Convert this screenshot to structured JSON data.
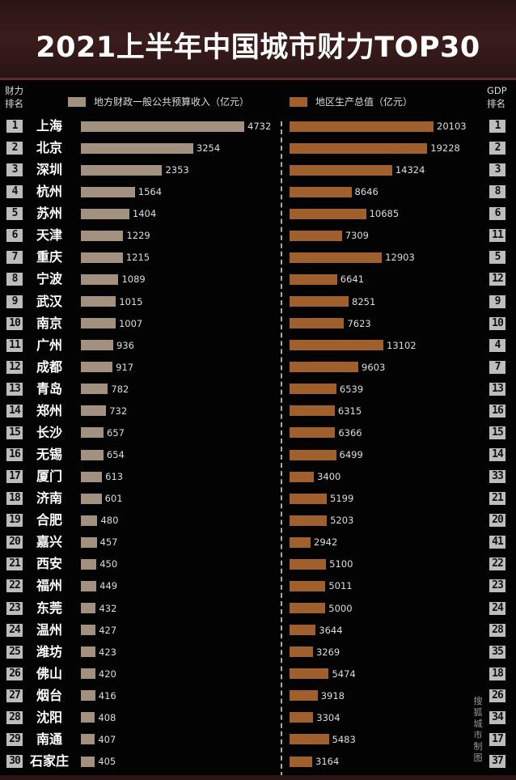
{
  "title": "2021上半年中国城市财力TOP30",
  "left_header": "财力排名",
  "right_header": "GDP排名",
  "credit": "搜狐城市制图",
  "chart_data": {
    "type": "bar",
    "orientation": "horizontal",
    "title": "2021上半年中国城市财力TOP30",
    "colors": {
      "revenue": "#a39180",
      "gdp": "#a0602e",
      "title_bg": "#3b1c1c"
    },
    "categories": [
      "上海",
      "北京",
      "深圳",
      "杭州",
      "苏州",
      "天津",
      "重庆",
      "宁波",
      "武汉",
      "南京",
      "广州",
      "成都",
      "青岛",
      "郑州",
      "长沙",
      "无锡",
      "厦门",
      "济南",
      "合肥",
      "嘉兴",
      "西安",
      "福州",
      "东莞",
      "温州",
      "潍坊",
      "佛山",
      "烟台",
      "沈阳",
      "南通",
      "石家庄"
    ],
    "finance_rank": [
      1,
      2,
      3,
      4,
      5,
      6,
      7,
      8,
      9,
      10,
      11,
      12,
      13,
      14,
      15,
      16,
      17,
      18,
      19,
      20,
      21,
      22,
      23,
      24,
      25,
      26,
      27,
      28,
      29,
      30
    ],
    "gdp_rank": [
      1,
      2,
      3,
      8,
      6,
      11,
      5,
      12,
      9,
      10,
      4,
      7,
      13,
      16,
      15,
      14,
      33,
      21,
      20,
      41,
      22,
      23,
      24,
      28,
      35,
      18,
      26,
      34,
      17,
      37
    ],
    "series": [
      {
        "name": "地方财政一般公共预算收入（亿元）",
        "values": [
          4732,
          3254,
          2353,
          1564,
          1404,
          1229,
          1215,
          1089,
          1015,
          1007,
          936,
          917,
          782,
          732,
          657,
          654,
          613,
          601,
          480,
          457,
          450,
          449,
          432,
          427,
          423,
          420,
          416,
          408,
          407,
          405
        ]
      },
      {
        "name": "地区生产总值（亿元）",
        "values": [
          20103,
          19228,
          14324,
          8646,
          10685,
          7309,
          12903,
          6641,
          8251,
          7623,
          13102,
          9603,
          6539,
          6315,
          6366,
          6499,
          3400,
          5199,
          5203,
          2942,
          5100,
          5011,
          5000,
          3644,
          3269,
          5474,
          3918,
          3304,
          5483,
          3164
        ]
      }
    ]
  }
}
